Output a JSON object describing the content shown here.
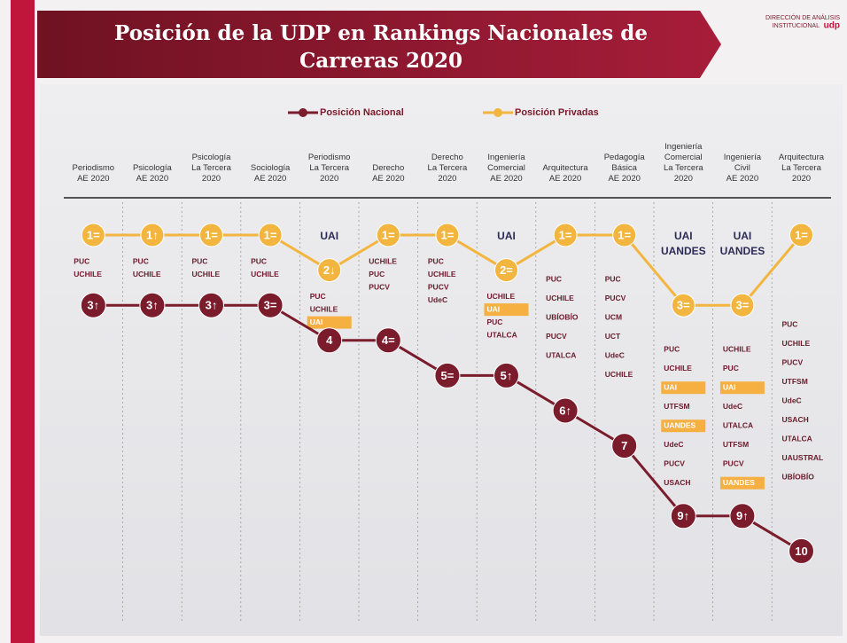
{
  "chart_data": {
    "type": "line",
    "title": "Posición de la UDP en Rankings Nacionales de Carreras 2020",
    "brand": [
      "DIRECCIÓN DE ANÁLISIS",
      "INSTITUCIONAL",
      "udp"
    ],
    "invert_y": true,
    "categories": [
      "Periodismo\nAE 2020",
      "Psicología\nAE 2020",
      "Psicología\nLa Tercera\n2020",
      "Sociología\nAE 2020",
      "Periodismo\nLa Tercera\n2020",
      "Derecho\nAE 2020",
      "Derecho\nLa Tercera\n2020",
      "Ingeniería\nComercial\nAE 2020",
      "Arquitectura\nAE 2020",
      "Pedagogía\nBásica\nAE 2020",
      "Ingeniería\nComercial\nLa Tercera\n2020",
      "Ingeniería\nCivil\nAE 2020",
      "Arquitectura\nLa Tercera\n2020"
    ],
    "series": [
      {
        "name": "Posición Nacional",
        "color": "#7b1c2c",
        "values": [
          3,
          3,
          3,
          3,
          4,
          4,
          5,
          5,
          6,
          7,
          9,
          9,
          10
        ],
        "value_labels": [
          "3↑",
          "3↑",
          "3↑",
          "3=",
          "4",
          "4=",
          "5=",
          "5↑",
          "6↑",
          "7",
          "9↑",
          "9↑",
          "10"
        ]
      },
      {
        "name": "Posición Privadas",
        "color": "#f2b640",
        "values": [
          1,
          1,
          1,
          1,
          2,
          1,
          1,
          2,
          1,
          1,
          3,
          3,
          1
        ],
        "value_labels": [
          "1=",
          "1↑",
          "1=",
          "1=",
          "2↓",
          "1=",
          "1=",
          "2=",
          "1=",
          "1=",
          "3=",
          "3=",
          "1="
        ]
      }
    ],
    "annotations": [
      {
        "above": [],
        "below": [
          "PUC",
          "UCHILE"
        ]
      },
      {
        "above": [],
        "below": [
          "PUC",
          "UCHILE"
        ]
      },
      {
        "above": [],
        "below": [
          "PUC",
          "UCHILE"
        ]
      },
      {
        "above": [],
        "below": [
          "PUC",
          "UCHILE"
        ]
      },
      {
        "above": [
          "UAI"
        ],
        "below": [
          "PUC",
          "UCHILE",
          {
            "text": "UAI",
            "highlight": true
          }
        ]
      },
      {
        "above": [],
        "below": [
          "UCHILE",
          "PUC",
          "PUCV"
        ]
      },
      {
        "above": [],
        "below": [
          "PUC",
          "UCHILE",
          "PUCV",
          "UdeC"
        ]
      },
      {
        "above": [
          "UAI"
        ],
        "below": [
          "UCHILE",
          {
            "text": "UAI",
            "highlight": true
          },
          "PUC",
          "UTALCA"
        ]
      },
      {
        "above": [],
        "below": [
          "PUC",
          "UCHILE",
          "UBÍOBÍO",
          "PUCV",
          "UTALCA"
        ]
      },
      {
        "above": [],
        "below": [
          "PUC",
          "PUCV",
          "UCM",
          "UCT",
          "UdeC",
          "UCHILE"
        ]
      },
      {
        "above": [
          "UAI",
          "UANDES"
        ],
        "below": [
          "PUC",
          "UCHILE",
          {
            "text": "UAI",
            "highlight": true
          },
          "UTFSM",
          {
            "text": "UANDES",
            "highlight": true
          },
          "UdeC",
          "PUCV",
          "USACH"
        ]
      },
      {
        "above": [
          "UAI",
          "UANDES"
        ],
        "below": [
          "UCHILE",
          "PUC",
          {
            "text": "UAI",
            "highlight": true
          },
          "UdeC",
          "UTALCA",
          "UTFSM",
          "PUCV",
          {
            "text": "UANDES",
            "highlight": true
          }
        ]
      },
      {
        "above": [],
        "below": [
          "PUC",
          "UCHILE",
          "PUCV",
          "UTFSM",
          "UdeC",
          "USACH",
          "UTALCA",
          "UAUSTRAL",
          "UBÍOBÍO"
        ]
      }
    ]
  }
}
